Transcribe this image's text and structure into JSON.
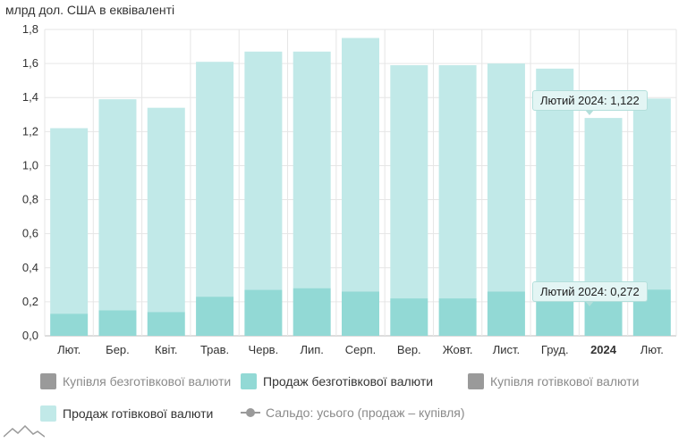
{
  "units_label": "млрд дол. США в еквіваленті",
  "colors": {
    "cash_sale": "#c1e9e8",
    "cashless_sale": "#92d9d5",
    "purchase": "#9a9a9a",
    "grid": "#e6e6e6",
    "axis": "#bbbbbb"
  },
  "chart_data": {
    "type": "bar",
    "stacked": true,
    "categories": [
      "Лют.",
      "Бер.",
      "Квіт.",
      "Трав.",
      "Черв.",
      "Лип.",
      "Серп.",
      "Вер.",
      "Жовт.",
      "Лист.",
      "Груд.",
      "2024",
      "Лют."
    ],
    "bold_categories": [
      "2024"
    ],
    "ylim": [
      0,
      1.8
    ],
    "yticks": [
      "0,0",
      "0,2",
      "0,4",
      "0,6",
      "0,8",
      "1,0",
      "1,2",
      "1,4",
      "1,6",
      "1,8"
    ],
    "grid": true,
    "series": [
      {
        "name": "Продаж безготівкової валюти",
        "values": [
          0.13,
          0.15,
          0.14,
          0.23,
          0.27,
          0.28,
          0.26,
          0.22,
          0.22,
          0.26,
          0.26,
          0.24,
          0.272
        ]
      },
      {
        "name": "Продаж готівкової валюти",
        "values": [
          1.09,
          1.24,
          1.2,
          1.38,
          1.4,
          1.39,
          1.49,
          1.37,
          1.37,
          1.34,
          1.31,
          1.04,
          1.122
        ]
      }
    ]
  },
  "legend": [
    {
      "label": "Купівля безготівкової валюти",
      "state": "inactive",
      "swatch": "#9a9a9a",
      "kind": "box"
    },
    {
      "label": "Продаж безготівкової валюти",
      "state": "active",
      "swatch": "#92d9d5",
      "kind": "box"
    },
    {
      "label": "Купівля готівкової валюти",
      "state": "inactive",
      "swatch": "#9a9a9a",
      "kind": "box"
    },
    {
      "label": "Продаж готівкової валюти",
      "state": "active",
      "swatch": "#c1e9e8",
      "kind": "box"
    },
    {
      "label": "Сальдо: усього (продаж – купівля)",
      "state": "inactive",
      "swatch": "#9a9a9a",
      "kind": "line"
    }
  ],
  "tooltips": {
    "cash": "Лютий 2024: 1,122",
    "cashless": "Лютий 2024: 0,272"
  }
}
